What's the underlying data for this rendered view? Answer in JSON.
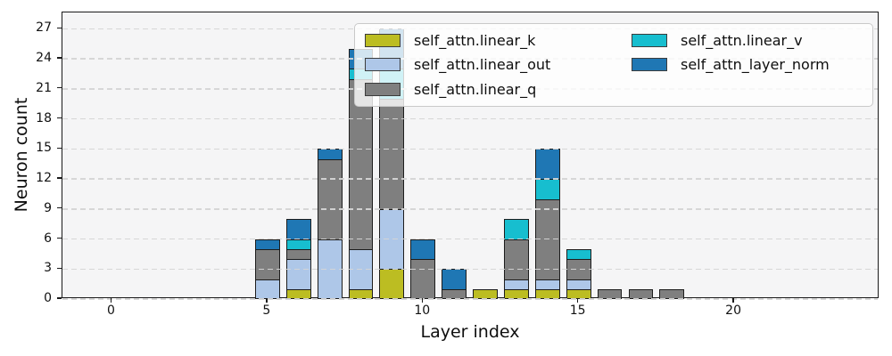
{
  "chart_data": {
    "type": "bar",
    "stacked": true,
    "title": "",
    "xlabel": "Layer index",
    "ylabel": "Neuron count",
    "categories": [
      0,
      1,
      2,
      3,
      4,
      5,
      6,
      7,
      8,
      9,
      10,
      11,
      12,
      13,
      14,
      15,
      16,
      17,
      18,
      19,
      20,
      21,
      22,
      23,
      24
    ],
    "series": [
      {
        "name": "self_attn.linear_k",
        "color": "#bcbd22",
        "values": [
          0,
          0,
          0,
          0,
          0,
          0,
          1,
          0,
          1,
          3,
          0,
          0,
          1,
          1,
          1,
          1,
          0,
          0,
          0,
          0,
          0,
          0,
          0,
          0,
          0
        ]
      },
      {
        "name": "self_attn.linear_out",
        "color": "#aec7e8",
        "values": [
          0,
          0,
          0,
          0,
          0,
          2,
          3,
          6,
          4,
          6,
          0,
          0,
          0,
          1,
          1,
          1,
          0,
          0,
          0,
          0,
          0,
          0,
          0,
          0,
          0
        ]
      },
      {
        "name": "self_attn.linear_q",
        "color": "#7f7f7f",
        "values": [
          0,
          0,
          0,
          0,
          0,
          3,
          1,
          8,
          17,
          11,
          4,
          1,
          0,
          4,
          8,
          2,
          1,
          1,
          1,
          0,
          0,
          0,
          0,
          0,
          0
        ]
      },
      {
        "name": "self_attn.linear_v",
        "color": "#17becf",
        "values": [
          0,
          0,
          0,
          0,
          0,
          0,
          1,
          0,
          1,
          3,
          0,
          0,
          0,
          2,
          2,
          1,
          0,
          0,
          0,
          0,
          0,
          0,
          0,
          0,
          0
        ]
      },
      {
        "name": "self_attn_layer_norm",
        "color": "#1f77b4",
        "values": [
          0,
          0,
          0,
          0,
          0,
          1,
          2,
          1,
          2,
          4,
          2,
          2,
          0,
          0,
          3,
          0,
          0,
          0,
          0,
          0,
          0,
          0,
          0,
          0,
          0
        ]
      }
    ],
    "bar_totals_by_layer": {
      "5": 6,
      "6": 8,
      "7": 15,
      "8": 25,
      "9": 27,
      "10": 6,
      "11": 3,
      "12": 1,
      "13": 8,
      "14": 15,
      "15": 5,
      "16": 1,
      "17": 1,
      "18": 1
    },
    "xticks": [
      0,
      5,
      10,
      15,
      20
    ],
    "yticks": [
      0,
      3,
      6,
      9,
      12,
      15,
      18,
      21,
      24,
      27
    ],
    "xlim": [
      -1.59,
      24.67
    ],
    "ylim": [
      0,
      28.62
    ],
    "bar_width": 0.8,
    "grid": "horizontal-dashed",
    "legend_position": "upper-right",
    "legend_columns": 2,
    "colors": {
      "bar_edge": "#1d1d1d",
      "grid_line": "#d5d5d5",
      "plot_background": "#f5f5f6",
      "figure_background": "#ffffff",
      "spine": "#1a1a1a"
    }
  }
}
